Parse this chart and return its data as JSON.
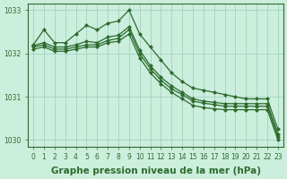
{
  "title": "Graphe pression niveau de la mer (hPa)",
  "xlabel_hours": [
    0,
    1,
    2,
    3,
    4,
    5,
    6,
    7,
    8,
    9,
    10,
    11,
    12,
    13,
    14,
    15,
    16,
    17,
    18,
    19,
    20,
    21,
    22,
    23
  ],
  "series": [
    [
      1032.2,
      1032.55,
      1032.25,
      1032.25,
      1032.45,
      1032.65,
      1032.55,
      1032.7,
      1032.75,
      1033.0,
      1032.45,
      1032.15,
      1031.85,
      1031.55,
      1031.35,
      1031.2,
      1031.15,
      1031.1,
      1031.05,
      1031.0,
      1030.95,
      1030.95,
      1030.95,
      1030.25
    ],
    [
      1032.15,
      1032.2,
      1032.1,
      1032.1,
      1032.15,
      1032.2,
      1032.2,
      1032.3,
      1032.35,
      1032.55,
      1032.0,
      1031.65,
      1031.38,
      1031.18,
      1031.05,
      1030.9,
      1030.85,
      1030.82,
      1030.78,
      1030.78,
      1030.78,
      1030.78,
      1030.78,
      1030.08
    ],
    [
      1032.1,
      1032.15,
      1032.05,
      1032.05,
      1032.1,
      1032.15,
      1032.15,
      1032.25,
      1032.28,
      1032.45,
      1031.9,
      1031.55,
      1031.3,
      1031.1,
      1030.95,
      1030.8,
      1030.75,
      1030.72,
      1030.7,
      1030.7,
      1030.7,
      1030.7,
      1030.7,
      1030.0
    ],
    [
      1032.18,
      1032.25,
      1032.15,
      1032.15,
      1032.2,
      1032.28,
      1032.25,
      1032.38,
      1032.42,
      1032.62,
      1032.08,
      1031.72,
      1031.45,
      1031.25,
      1031.1,
      1030.95,
      1030.9,
      1030.87,
      1030.84,
      1030.84,
      1030.84,
      1030.84,
      1030.84,
      1030.14
    ]
  ],
  "line_color": "#2d6b2d",
  "marker": "D",
  "marker_size": 2.0,
  "bg_color": "#cceedd",
  "grid_color": "#99ccbb",
  "axis_color": "#2d6b2d",
  "ylim": [
    1029.85,
    1033.15
  ],
  "yticks": [
    1030,
    1031,
    1032,
    1033
  ],
  "xticks": [
    0,
    1,
    2,
    3,
    4,
    5,
    6,
    7,
    8,
    9,
    10,
    11,
    12,
    13,
    14,
    15,
    16,
    17,
    18,
    19,
    20,
    21,
    22,
    23
  ],
  "title_fontsize": 7.5,
  "tick_fontsize": 5.5,
  "line_width": 0.9
}
